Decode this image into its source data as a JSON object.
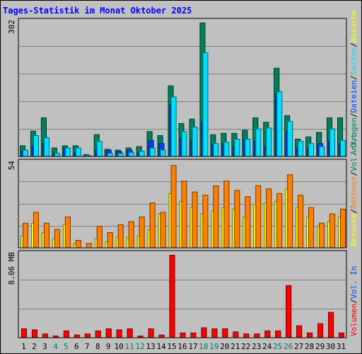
{
  "title": "Tages-Statistik im Monat Oktober 2025",
  "colors": {
    "hits": "#00805c",
    "files": "#0040ff",
    "pages": "#00e0ff",
    "visits": "#ffff00",
    "sites": "#ff8000",
    "kbytes": "#ff0000",
    "weekend": "#00805c",
    "weekday": "#000000",
    "grid": "#808080",
    "panel": "#c0c0c0"
  },
  "chart_data": [
    {
      "type": "bar",
      "panel": "top",
      "y_max_label": "302",
      "ylim": [
        0,
        302
      ],
      "right_legend": [
        {
          "text": "Anfragen",
          "color": "#00805c"
        },
        {
          "text": "/",
          "color": "#000000"
        },
        {
          "text": "Dateien",
          "color": "#0040ff"
        },
        {
          "text": "/",
          "color": "#000000"
        },
        {
          "text": "Seiten",
          "color": "#00e0ff"
        },
        {
          "text": "/",
          "color": "#000000"
        },
        {
          "text": "Besuche",
          "color": "#ffff00"
        }
      ],
      "categories": [
        "1",
        "2",
        "3",
        "4",
        "5",
        "6",
        "7",
        "8",
        "9",
        "10",
        "11",
        "12",
        "13",
        "14",
        "15",
        "16",
        "17",
        "18",
        "19",
        "20",
        "21",
        "22",
        "23",
        "24",
        "25",
        "26",
        "27",
        "28",
        "29",
        "30",
        "31"
      ],
      "series": [
        {
          "name": "Anfragen",
          "values": [
            25,
            58,
            88,
            20,
            25,
            25,
            5,
            50,
            17,
            15,
            20,
            23,
            57,
            48,
            160,
            75,
            85,
            302,
            50,
            53,
            53,
            60,
            88,
            78,
            200,
            93,
            40,
            45,
            55,
            88,
            88
          ]
        },
        {
          "name": "Dateien",
          "values": [
            12,
            25,
            30,
            8,
            20,
            10,
            3,
            15,
            15,
            12,
            15,
            10,
            37,
            30,
            117,
            40,
            38,
            80,
            28,
            30,
            25,
            40,
            35,
            25,
            143,
            58,
            20,
            18,
            30,
            35,
            30
          ]
        },
        {
          "name": "Seiten",
          "values": [
            15,
            48,
            43,
            8,
            20,
            20,
            3,
            35,
            8,
            8,
            10,
            13,
            20,
            15,
            135,
            57,
            67,
            235,
            30,
            33,
            40,
            40,
            63,
            65,
            147,
            80,
            35,
            30,
            23,
            63,
            37
          ]
        }
      ]
    },
    {
      "type": "bar",
      "panel": "middle",
      "y_max_label": "54",
      "ylim": [
        0,
        54
      ],
      "right_legend": [
        {
          "text": "Besuche",
          "color": "#ffff00"
        },
        {
          "text": "/",
          "color": "#000000"
        },
        {
          "text": "Rechner",
          "color": "#ff8000"
        },
        {
          "text": "/",
          "color": "#000000"
        },
        {
          "text": "Vol. Out",
          "color": "#00805c"
        }
      ],
      "categories": [
        "1",
        "2",
        "3",
        "4",
        "5",
        "6",
        "7",
        "8",
        "9",
        "10",
        "11",
        "12",
        "13",
        "14",
        "15",
        "16",
        "17",
        "18",
        "19",
        "20",
        "21",
        "22",
        "23",
        "24",
        "25",
        "26",
        "27",
        "28",
        "29",
        "30",
        "31"
      ],
      "series": [
        {
          "name": "Besuche",
          "values": [
            8,
            16,
            10,
            6,
            15,
            3,
            0,
            6,
            4,
            7,
            7,
            8,
            12,
            22,
            35,
            30,
            26,
            22,
            24,
            26,
            25,
            20,
            28,
            29,
            30,
            38,
            26,
            20,
            14,
            17,
            20
          ]
        },
        {
          "name": "Rechner",
          "values": [
            16,
            23,
            16,
            12,
            20,
            5,
            3,
            14,
            10,
            15,
            17,
            20,
            29,
            23,
            53,
            43,
            36,
            34,
            40,
            43,
            37,
            33,
            40,
            38,
            35,
            47,
            34,
            26,
            16,
            22,
            25
          ]
        }
      ]
    },
    {
      "type": "bar",
      "panel": "bottom",
      "y_max_label": "8.06 MB",
      "ylim": [
        0,
        8.06
      ],
      "right_legend": [
        {
          "text": "Volumen",
          "color": "#ff0000"
        },
        {
          "text": "/",
          "color": "#000000"
        },
        {
          "text": "Vol. In",
          "color": "#0040ff"
        }
      ],
      "categories": [
        "1",
        "2",
        "3",
        "4",
        "5",
        "6",
        "7",
        "8",
        "9",
        "10",
        "11",
        "12",
        "13",
        "14",
        "15",
        "16",
        "17",
        "18",
        "19",
        "20",
        "21",
        "22",
        "23",
        "24",
        "25",
        "26",
        "27",
        "28",
        "29",
        "30",
        "31"
      ],
      "series": [
        {
          "name": "Volumen",
          "values": [
            0.9,
            0.8,
            0.4,
            0.2,
            0.7,
            0.3,
            0.4,
            0.7,
            0.9,
            0.8,
            0.9,
            0.2,
            0.9,
            0.3,
            8.06,
            0.5,
            0.5,
            1.0,
            0.9,
            0.9,
            0.6,
            0.4,
            0.4,
            0.7,
            0.7,
            5.1,
            1.2,
            0.5,
            1.4,
            2.5,
            0.5
          ]
        }
      ]
    }
  ],
  "x_labels": [
    {
      "d": "1",
      "weekend": false
    },
    {
      "d": "2",
      "weekend": false
    },
    {
      "d": "3",
      "weekend": false
    },
    {
      "d": "4",
      "weekend": true
    },
    {
      "d": "5",
      "weekend": true
    },
    {
      "d": "6",
      "weekend": false
    },
    {
      "d": "7",
      "weekend": false
    },
    {
      "d": "8",
      "weekend": false
    },
    {
      "d": "9",
      "weekend": false
    },
    {
      "d": "10",
      "weekend": false
    },
    {
      "d": "11",
      "weekend": true
    },
    {
      "d": "12",
      "weekend": true
    },
    {
      "d": "13",
      "weekend": false
    },
    {
      "d": "14",
      "weekend": false
    },
    {
      "d": "15",
      "weekend": false
    },
    {
      "d": "16",
      "weekend": false
    },
    {
      "d": "17",
      "weekend": false
    },
    {
      "d": "18",
      "weekend": true
    },
    {
      "d": "19",
      "weekend": true
    },
    {
      "d": "20",
      "weekend": false
    },
    {
      "d": "21",
      "weekend": false
    },
    {
      "d": "22",
      "weekend": false
    },
    {
      "d": "23",
      "weekend": false
    },
    {
      "d": "24",
      "weekend": false
    },
    {
      "d": "25",
      "weekend": true
    },
    {
      "d": "26",
      "weekend": true
    },
    {
      "d": "27",
      "weekend": false
    },
    {
      "d": "28",
      "weekend": false
    },
    {
      "d": "29",
      "weekend": false
    },
    {
      "d": "30",
      "weekend": false
    },
    {
      "d": "31",
      "weekend": false
    }
  ]
}
